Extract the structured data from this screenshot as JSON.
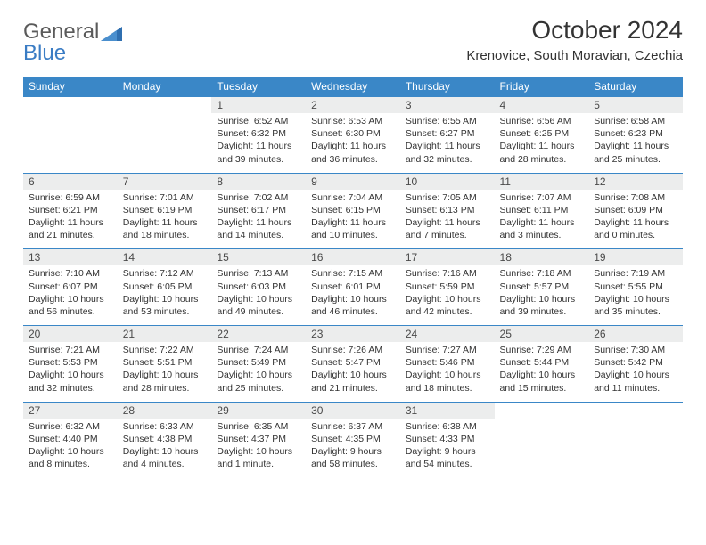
{
  "brand": {
    "name1": "General",
    "name2": "Blue"
  },
  "title": "October 2024",
  "location": "Krenovice, South Moravian, Czechia",
  "weekdays": [
    "Sunday",
    "Monday",
    "Tuesday",
    "Wednesday",
    "Thursday",
    "Friday",
    "Saturday"
  ],
  "colors": {
    "header_bg": "#3a87c7",
    "header_fg": "#ffffff",
    "daynum_bg": "#eceded",
    "page_bg": "#ffffff",
    "text": "#333333",
    "logo_gray": "#5a5a5a",
    "logo_blue": "#3a7cc4"
  },
  "weeks": [
    {
      "nums": [
        "",
        "",
        "1",
        "2",
        "3",
        "4",
        "5"
      ],
      "cells": [
        {
          "empty": true
        },
        {
          "empty": true
        },
        {
          "sunrise": "Sunrise: 6:52 AM",
          "sunset": "Sunset: 6:32 PM",
          "day1": "Daylight: 11 hours",
          "day2": "and 39 minutes."
        },
        {
          "sunrise": "Sunrise: 6:53 AM",
          "sunset": "Sunset: 6:30 PM",
          "day1": "Daylight: 11 hours",
          "day2": "and 36 minutes."
        },
        {
          "sunrise": "Sunrise: 6:55 AM",
          "sunset": "Sunset: 6:27 PM",
          "day1": "Daylight: 11 hours",
          "day2": "and 32 minutes."
        },
        {
          "sunrise": "Sunrise: 6:56 AM",
          "sunset": "Sunset: 6:25 PM",
          "day1": "Daylight: 11 hours",
          "day2": "and 28 minutes."
        },
        {
          "sunrise": "Sunrise: 6:58 AM",
          "sunset": "Sunset: 6:23 PM",
          "day1": "Daylight: 11 hours",
          "day2": "and 25 minutes."
        }
      ]
    },
    {
      "nums": [
        "6",
        "7",
        "8",
        "9",
        "10",
        "11",
        "12"
      ],
      "cells": [
        {
          "sunrise": "Sunrise: 6:59 AM",
          "sunset": "Sunset: 6:21 PM",
          "day1": "Daylight: 11 hours",
          "day2": "and 21 minutes."
        },
        {
          "sunrise": "Sunrise: 7:01 AM",
          "sunset": "Sunset: 6:19 PM",
          "day1": "Daylight: 11 hours",
          "day2": "and 18 minutes."
        },
        {
          "sunrise": "Sunrise: 7:02 AM",
          "sunset": "Sunset: 6:17 PM",
          "day1": "Daylight: 11 hours",
          "day2": "and 14 minutes."
        },
        {
          "sunrise": "Sunrise: 7:04 AM",
          "sunset": "Sunset: 6:15 PM",
          "day1": "Daylight: 11 hours",
          "day2": "and 10 minutes."
        },
        {
          "sunrise": "Sunrise: 7:05 AM",
          "sunset": "Sunset: 6:13 PM",
          "day1": "Daylight: 11 hours",
          "day2": "and 7 minutes."
        },
        {
          "sunrise": "Sunrise: 7:07 AM",
          "sunset": "Sunset: 6:11 PM",
          "day1": "Daylight: 11 hours",
          "day2": "and 3 minutes."
        },
        {
          "sunrise": "Sunrise: 7:08 AM",
          "sunset": "Sunset: 6:09 PM",
          "day1": "Daylight: 11 hours",
          "day2": "and 0 minutes."
        }
      ]
    },
    {
      "nums": [
        "13",
        "14",
        "15",
        "16",
        "17",
        "18",
        "19"
      ],
      "cells": [
        {
          "sunrise": "Sunrise: 7:10 AM",
          "sunset": "Sunset: 6:07 PM",
          "day1": "Daylight: 10 hours",
          "day2": "and 56 minutes."
        },
        {
          "sunrise": "Sunrise: 7:12 AM",
          "sunset": "Sunset: 6:05 PM",
          "day1": "Daylight: 10 hours",
          "day2": "and 53 minutes."
        },
        {
          "sunrise": "Sunrise: 7:13 AM",
          "sunset": "Sunset: 6:03 PM",
          "day1": "Daylight: 10 hours",
          "day2": "and 49 minutes."
        },
        {
          "sunrise": "Sunrise: 7:15 AM",
          "sunset": "Sunset: 6:01 PM",
          "day1": "Daylight: 10 hours",
          "day2": "and 46 minutes."
        },
        {
          "sunrise": "Sunrise: 7:16 AM",
          "sunset": "Sunset: 5:59 PM",
          "day1": "Daylight: 10 hours",
          "day2": "and 42 minutes."
        },
        {
          "sunrise": "Sunrise: 7:18 AM",
          "sunset": "Sunset: 5:57 PM",
          "day1": "Daylight: 10 hours",
          "day2": "and 39 minutes."
        },
        {
          "sunrise": "Sunrise: 7:19 AM",
          "sunset": "Sunset: 5:55 PM",
          "day1": "Daylight: 10 hours",
          "day2": "and 35 minutes."
        }
      ]
    },
    {
      "nums": [
        "20",
        "21",
        "22",
        "23",
        "24",
        "25",
        "26"
      ],
      "cells": [
        {
          "sunrise": "Sunrise: 7:21 AM",
          "sunset": "Sunset: 5:53 PM",
          "day1": "Daylight: 10 hours",
          "day2": "and 32 minutes."
        },
        {
          "sunrise": "Sunrise: 7:22 AM",
          "sunset": "Sunset: 5:51 PM",
          "day1": "Daylight: 10 hours",
          "day2": "and 28 minutes."
        },
        {
          "sunrise": "Sunrise: 7:24 AM",
          "sunset": "Sunset: 5:49 PM",
          "day1": "Daylight: 10 hours",
          "day2": "and 25 minutes."
        },
        {
          "sunrise": "Sunrise: 7:26 AM",
          "sunset": "Sunset: 5:47 PM",
          "day1": "Daylight: 10 hours",
          "day2": "and 21 minutes."
        },
        {
          "sunrise": "Sunrise: 7:27 AM",
          "sunset": "Sunset: 5:46 PM",
          "day1": "Daylight: 10 hours",
          "day2": "and 18 minutes."
        },
        {
          "sunrise": "Sunrise: 7:29 AM",
          "sunset": "Sunset: 5:44 PM",
          "day1": "Daylight: 10 hours",
          "day2": "and 15 minutes."
        },
        {
          "sunrise": "Sunrise: 7:30 AM",
          "sunset": "Sunset: 5:42 PM",
          "day1": "Daylight: 10 hours",
          "day2": "and 11 minutes."
        }
      ]
    },
    {
      "nums": [
        "27",
        "28",
        "29",
        "30",
        "31",
        "",
        ""
      ],
      "cells": [
        {
          "sunrise": "Sunrise: 6:32 AM",
          "sunset": "Sunset: 4:40 PM",
          "day1": "Daylight: 10 hours",
          "day2": "and 8 minutes."
        },
        {
          "sunrise": "Sunrise: 6:33 AM",
          "sunset": "Sunset: 4:38 PM",
          "day1": "Daylight: 10 hours",
          "day2": "and 4 minutes."
        },
        {
          "sunrise": "Sunrise: 6:35 AM",
          "sunset": "Sunset: 4:37 PM",
          "day1": "Daylight: 10 hours",
          "day2": "and 1 minute."
        },
        {
          "sunrise": "Sunrise: 6:37 AM",
          "sunset": "Sunset: 4:35 PM",
          "day1": "Daylight: 9 hours",
          "day2": "and 58 minutes."
        },
        {
          "sunrise": "Sunrise: 6:38 AM",
          "sunset": "Sunset: 4:33 PM",
          "day1": "Daylight: 9 hours",
          "day2": "and 54 minutes."
        },
        {
          "empty": true
        },
        {
          "empty": true
        }
      ]
    }
  ]
}
